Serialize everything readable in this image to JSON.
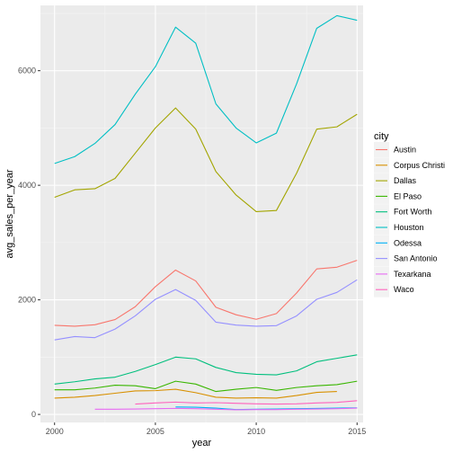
{
  "chart_data": {
    "type": "line",
    "title": "",
    "xlabel": "year",
    "ylabel": "avg_sales_per_year",
    "xlim": [
      1999.3,
      2015.3
    ],
    "ylim": [
      -140,
      7140
    ],
    "x_ticks": [
      2000,
      2005,
      2010,
      2015
    ],
    "x_tick_labels": [
      "2000",
      "2005",
      "2010",
      "2015"
    ],
    "y_ticks": [
      0,
      2000,
      4000,
      6000
    ],
    "y_tick_labels": [
      "0",
      "2000",
      "4000",
      "6000"
    ],
    "grid": true,
    "legend_position": "right",
    "legend_title": "city",
    "series": [
      {
        "name": "Austin",
        "color": "#F8766D",
        "x": [
          2000,
          2001,
          2002,
          2003,
          2004,
          2005,
          2006,
          2007,
          2008,
          2009,
          2010,
          2011,
          2012,
          2013,
          2014,
          2015
        ],
        "y": [
          1555,
          1540,
          1565,
          1655,
          1880,
          2230,
          2520,
          2330,
          1870,
          1740,
          1660,
          1760,
          2120,
          2540,
          2570,
          2690
        ]
      },
      {
        "name": "Corpus Christi",
        "color": "#D89000",
        "x": [
          2000,
          2001,
          2002,
          2003,
          2004,
          2005,
          2006,
          2007,
          2008,
          2009,
          2010,
          2011,
          2012,
          2013,
          2014
        ],
        "y": [
          285,
          300,
          330,
          370,
          410,
          415,
          440,
          380,
          300,
          285,
          290,
          285,
          330,
          385,
          400
        ]
      },
      {
        "name": "Dallas",
        "color": "#A3A500",
        "x": [
          2000,
          2001,
          2002,
          2003,
          2004,
          2005,
          2006,
          2007,
          2008,
          2009,
          2010,
          2011,
          2012,
          2013,
          2014,
          2015
        ],
        "y": [
          3790,
          3920,
          3940,
          4120,
          4560,
          5000,
          5350,
          4980,
          4240,
          3830,
          3540,
          3560,
          4210,
          4980,
          5020,
          5240
        ]
      },
      {
        "name": "El Paso",
        "color": "#39B600",
        "x": [
          2000,
          2001,
          2002,
          2003,
          2004,
          2005,
          2006,
          2007,
          2008,
          2009,
          2010,
          2011,
          2012,
          2013,
          2014,
          2015
        ],
        "y": [
          430,
          430,
          460,
          510,
          500,
          450,
          580,
          530,
          400,
          440,
          470,
          420,
          470,
          500,
          520,
          580
        ]
      },
      {
        "name": "Fort Worth",
        "color": "#00BF7D",
        "x": [
          2000,
          2001,
          2002,
          2003,
          2004,
          2005,
          2006,
          2007,
          2008,
          2009,
          2010,
          2011,
          2012,
          2013,
          2014,
          2015
        ],
        "y": [
          530,
          570,
          620,
          650,
          750,
          870,
          1000,
          970,
          820,
          730,
          700,
          690,
          760,
          920,
          980,
          1040
        ]
      },
      {
        "name": "Houston",
        "color": "#00BFC4",
        "x": [
          2000,
          2001,
          2002,
          2003,
          2004,
          2005,
          2006,
          2007,
          2008,
          2009,
          2010,
          2011,
          2012,
          2013,
          2014,
          2015
        ],
        "y": [
          4380,
          4500,
          4730,
          5060,
          5590,
          6070,
          6760,
          6480,
          5420,
          5000,
          4740,
          4910,
          5770,
          6740,
          6960,
          6880
        ]
      },
      {
        "name": "Odessa",
        "color": "#00B0F6",
        "x": [
          2006,
          2007,
          2008,
          2009,
          2010,
          2011,
          2012,
          2013,
          2014,
          2015
        ],
        "y": [
          130,
          125,
          110,
          85,
          90,
          95,
          100,
          105,
          110,
          115
        ]
      },
      {
        "name": "San Antonio",
        "color": "#9590FF",
        "x": [
          2000,
          2001,
          2002,
          2003,
          2004,
          2005,
          2006,
          2007,
          2008,
          2009,
          2010,
          2011,
          2012,
          2013,
          2014,
          2015
        ],
        "y": [
          1300,
          1360,
          1340,
          1490,
          1720,
          2010,
          2180,
          1990,
          1610,
          1560,
          1540,
          1550,
          1720,
          2010,
          2130,
          2350
        ]
      },
      {
        "name": "Texarkana",
        "color": "#E76BF3",
        "x": [
          2002,
          2003,
          2004,
          2005,
          2006,
          2007,
          2008,
          2009,
          2010,
          2011,
          2012,
          2013,
          2014,
          2015
        ],
        "y": [
          90,
          90,
          95,
          100,
          105,
          100,
          90,
          80,
          85,
          85,
          90,
          95,
          100,
          110
        ]
      },
      {
        "name": "Waco",
        "color": "#FF62BC",
        "x": [
          2004,
          2005,
          2006,
          2007,
          2008,
          2009,
          2010,
          2011,
          2012,
          2013,
          2014,
          2015
        ],
        "y": [
          180,
          200,
          215,
          200,
          205,
          195,
          185,
          180,
          185,
          200,
          210,
          240
        ]
      }
    ]
  }
}
